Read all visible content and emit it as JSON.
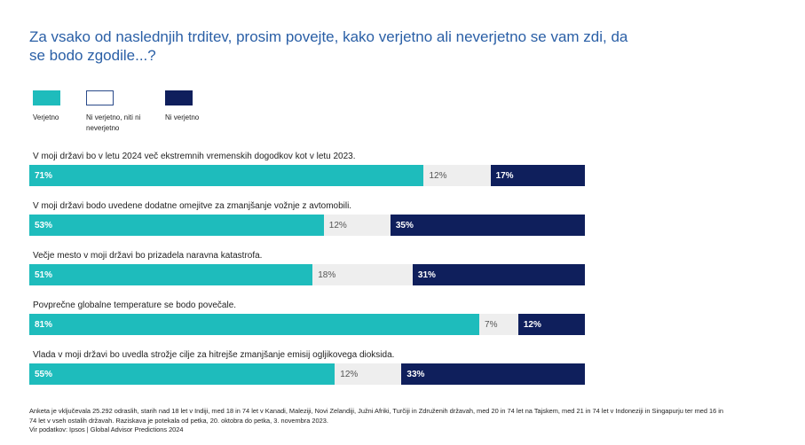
{
  "title": "Za vsako od naslednjih trditev, prosim povejte, kako verjetno ali neverjetno se vam zdi, da se bodo zgodile...?",
  "colors": {
    "likely": "#1ebcbc",
    "neutral": "#eeeeee",
    "unlikely": "#0f1f5c"
  },
  "chart_data": {
    "type": "bar",
    "orientation": "horizontal",
    "stacked": true,
    "title": "Za vsako od naslednjih trditev, prosim povejte, kako verjetno ali neverjetno se vam zdi, da se bodo zgodile...?",
    "legend": [
      "Verjetno",
      "Ni verjetno, niti ni neverjetno",
      "Ni verjetno"
    ],
    "legend_position": "top-left",
    "categories": [
      "V moji državi bo v letu 2024 več ekstremnih vremenskih dogodkov kot v letu 2023.",
      "V moji državi bodo uvedene dodatne omejitve za zmanjšanje vožnje z avtomobili.",
      "Večje mesto v moji državi bo prizadela naravna katastrofa.",
      "Povprečne globalne temperature se bodo povečale.",
      "Vlada v moji državi bo uvedla strožje cilje za hitrejše zmanjšanje emisij ogljikovega dioksida."
    ],
    "series": [
      {
        "name": "Verjetno",
        "values": [
          71,
          53,
          51,
          81,
          55
        ],
        "labels": [
          "71%",
          "53%",
          "51%",
          "81%",
          "55%"
        ]
      },
      {
        "name": "Ni verjetno, niti ni neverjetno",
        "values": [
          12,
          12,
          18,
          7,
          12
        ],
        "labels": [
          "12%",
          "12%",
          "18%",
          "7%",
          "12%"
        ]
      },
      {
        "name": "Ni verjetno",
        "values": [
          17,
          35,
          31,
          12,
          33
        ],
        "labels": [
          "17%",
          "35%",
          "31%",
          "12%",
          "33%"
        ]
      }
    ],
    "xlim": [
      0,
      100
    ]
  },
  "footnote": {
    "line1": "Anketa je vključevala 25.292 odraslih, starih nad 18 let v Indiji, med 18 in 74 let v Kanadi, Maleziji, Novi Zelandiji, Južni Afriki, Turčiji in Združenih državah, med 20 in 74 let na Tajskem, med 21 in 74 let v Indoneziji in Singapurju ter med 16 in 74 let v vseh ostalih državah. Raziskava je potekala od petka, 20. oktobra do petka, 3. novembra 2023.",
    "line2": "Vir podatkov: Ipsos | Global Advisor Predictions 2024"
  }
}
